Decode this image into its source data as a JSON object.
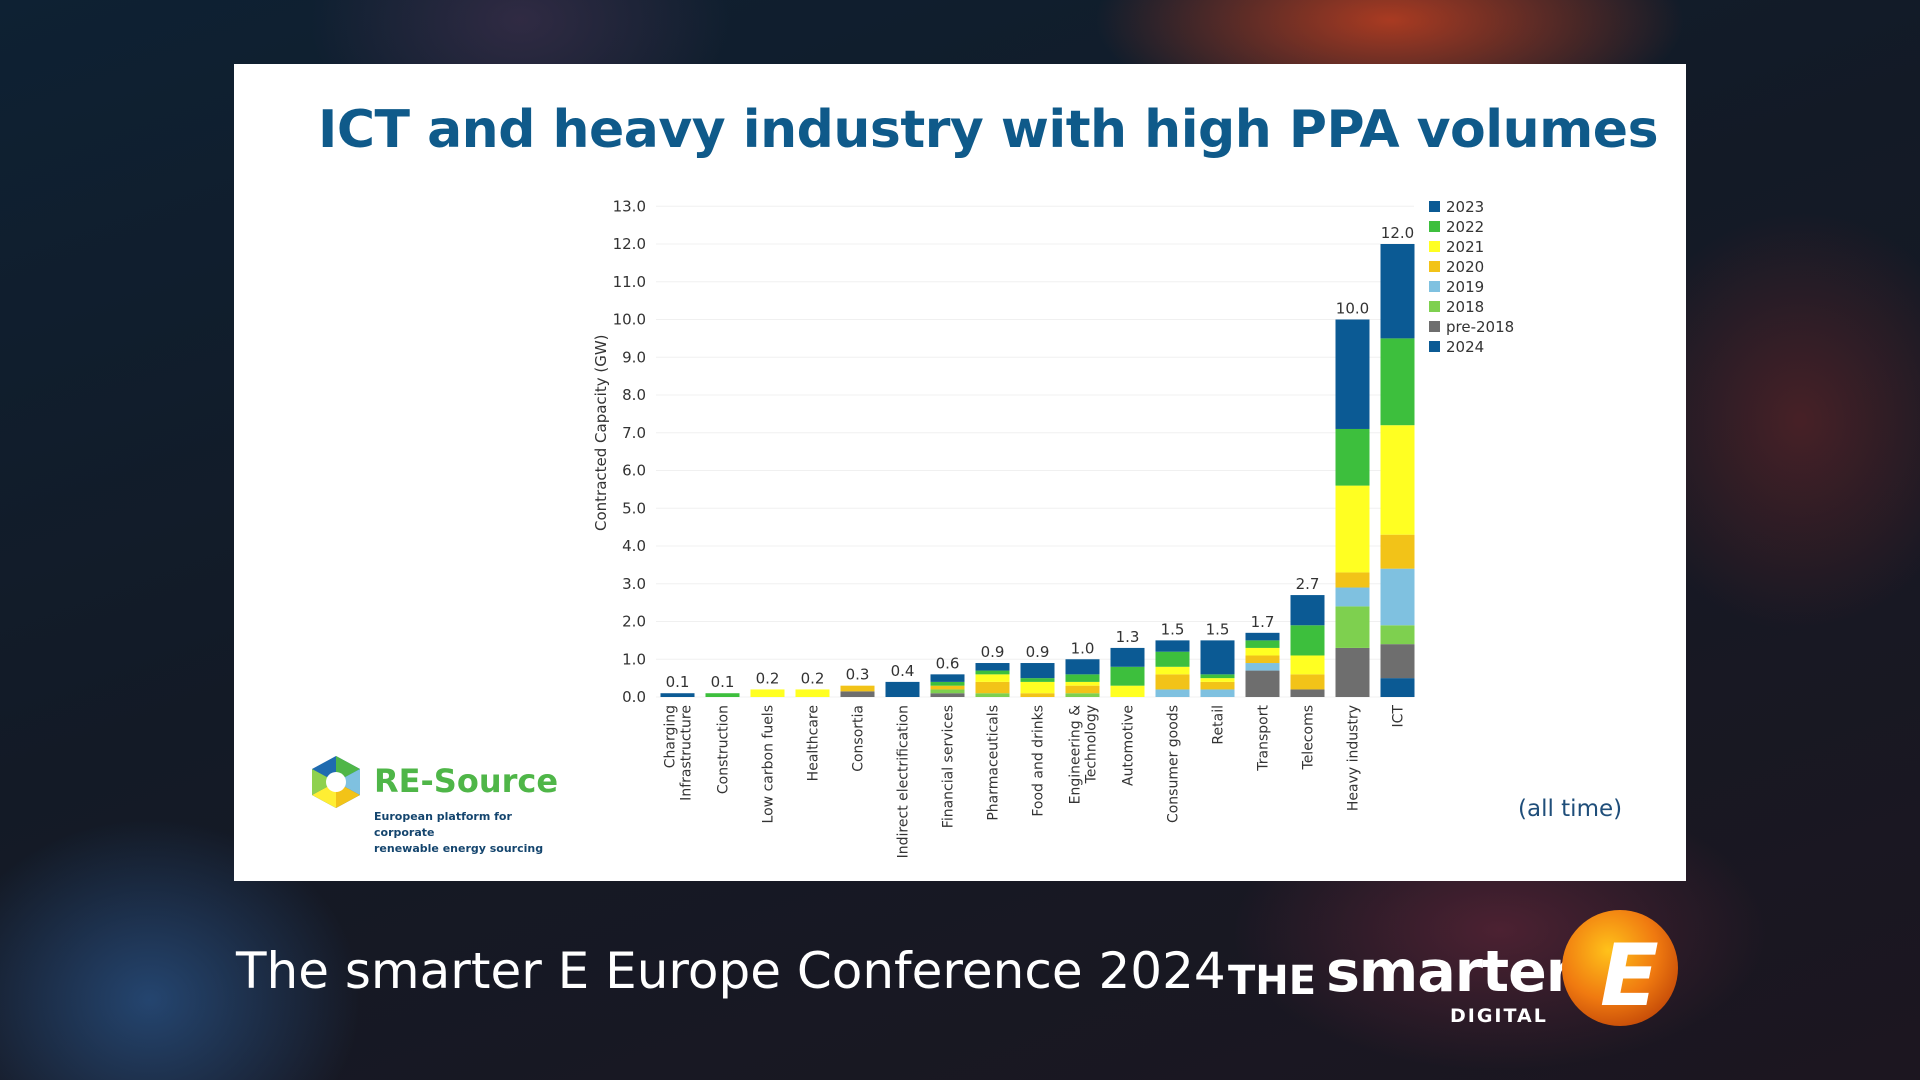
{
  "slide": {
    "title": "ICT and heavy industry with high PPA volumes",
    "note": "(all time)"
  },
  "branding": {
    "name": "RE-Source",
    "tagline_line1": "European platform for corporate",
    "tagline_line2": "renewable energy sourcing"
  },
  "footer": {
    "conference": "The smarter E Europe Conference 2024",
    "logo_the": "THE",
    "logo_smarter": "smarter",
    "logo_digital": "DIGITAL",
    "logo_e": "E"
  },
  "chart_data": {
    "type": "bar",
    "stacked": true,
    "title": "",
    "xlabel": "",
    "ylabel": "Contracted Capacity (GW)",
    "ylim": [
      0,
      13
    ],
    "yticks": [
      "0.0",
      "1.0",
      "2.0",
      "3.0",
      "4.0",
      "5.0",
      "6.0",
      "7.0",
      "8.0",
      "9.0",
      "10.0",
      "11.0",
      "12.0",
      "13.0"
    ],
    "categories": [
      [
        "Charging",
        "Infrastructure"
      ],
      [
        "Construction"
      ],
      [
        "Low carbon fuels"
      ],
      [
        "Healthcare"
      ],
      [
        "Consortia"
      ],
      [
        "Indirect electrification"
      ],
      [
        "Financial services"
      ],
      [
        "Pharmaceuticals"
      ],
      [
        "Food and drinks"
      ],
      [
        "Engineering &",
        "Technology"
      ],
      [
        "Automotive"
      ],
      [
        "Consumer goods"
      ],
      [
        "Retail"
      ],
      [
        "Transport"
      ],
      [
        "Telecoms"
      ],
      [
        "Heavy industry"
      ],
      [
        "ICT"
      ]
    ],
    "totals": [
      "0.1",
      "0.1",
      "0.2",
      "0.2",
      "0.3",
      "0.4",
      "0.6",
      "0.9",
      "0.9",
      "1.0",
      "1.3",
      "1.5",
      "1.5",
      "1.7",
      "2.7",
      "10.0",
      "12.0"
    ],
    "legend_position": "top-right",
    "grid": true,
    "series": [
      {
        "name": "2024",
        "color": "#0b5a94",
        "values": [
          0.1,
          0,
          0,
          0,
          0,
          0,
          0,
          0,
          0,
          0,
          0,
          0,
          0,
          0,
          0,
          0,
          0.5
        ]
      },
      {
        "name": "pre-2018",
        "color": "#6e6e6e",
        "values": [
          0,
          0,
          0,
          0,
          0.15,
          0,
          0.1,
          0,
          0,
          0,
          0,
          0,
          0,
          0.7,
          0.2,
          1.3,
          0.9
        ]
      },
      {
        "name": "2018",
        "color": "#7ed04f",
        "values": [
          0,
          0,
          0,
          0,
          0,
          0,
          0.1,
          0.1,
          0,
          0.1,
          0,
          0,
          0,
          0,
          0,
          1.1,
          0.5
        ]
      },
      {
        "name": "2019",
        "color": "#7fc1e0",
        "values": [
          0,
          0,
          0,
          0,
          0,
          0,
          0,
          0,
          0,
          0,
          0,
          0.2,
          0.2,
          0.2,
          0,
          0.5,
          1.5
        ]
      },
      {
        "name": "2020",
        "color": "#f2c318",
        "values": [
          0,
          0,
          0,
          0,
          0.15,
          0,
          0.1,
          0.3,
          0.1,
          0.2,
          0,
          0.4,
          0.2,
          0.2,
          0.4,
          0.4,
          0.9
        ]
      },
      {
        "name": "2021",
        "color": "#ffff22",
        "values": [
          0,
          0,
          0.2,
          0.2,
          0,
          0,
          0,
          0.2,
          0.3,
          0.1,
          0.3,
          0.2,
          0.1,
          0.2,
          0.5,
          2.3,
          2.9
        ]
      },
      {
        "name": "2022",
        "color": "#3dbf3d",
        "values": [
          0,
          0.1,
          0,
          0,
          0,
          0,
          0.1,
          0.1,
          0.1,
          0.2,
          0.5,
          0.4,
          0.1,
          0.2,
          0.8,
          1.5,
          2.3
        ]
      },
      {
        "name": "2023",
        "color": "#0b5a94",
        "values": [
          0,
          0,
          0,
          0,
          0,
          0.4,
          0.2,
          0.2,
          0.4,
          0.4,
          0.5,
          0.3,
          0.9,
          0.2,
          0.8,
          2.9,
          2.5
        ]
      }
    ],
    "legend_order": [
      "2023",
      "2022",
      "2021",
      "2020",
      "2019",
      "2018",
      "pre-2018",
      "2024"
    ]
  }
}
